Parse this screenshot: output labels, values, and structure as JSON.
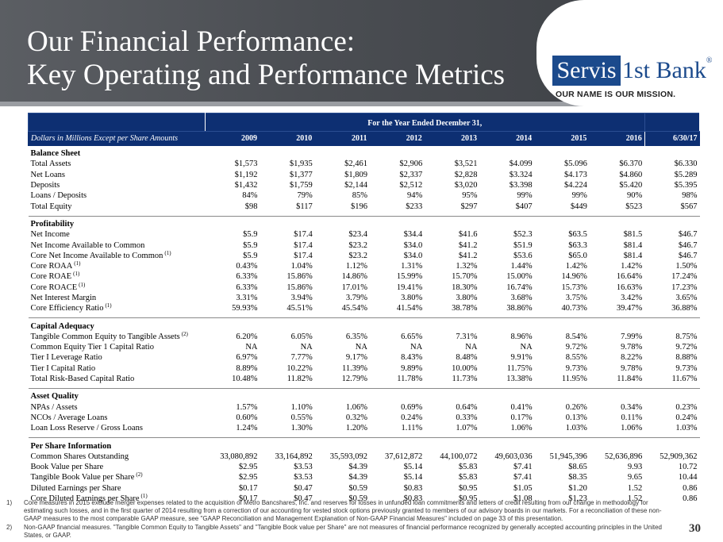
{
  "title": {
    "line1": "Our Financial Performance:",
    "line2": "Key Operating and Performance Metrics"
  },
  "logo": {
    "word1": "Servis",
    "word2": "1st Bank",
    "reg": "®",
    "tagline": "OUR NAME IS OUR MISSION."
  },
  "table": {
    "band_label": "For the Year Ended December 31,",
    "header_label": "Dollars in Millions Except per Share Amounts",
    "columns": [
      "2009",
      "2010",
      "2011",
      "2012",
      "2013",
      "2014",
      "2015",
      "2016",
      "6/30/17"
    ],
    "sections": [
      {
        "name": "Balance Sheet",
        "rows": [
          {
            "label": "Total Assets",
            "note": "",
            "values": [
              "$1,573",
              "$1,935",
              "$2,461",
              "$2,906",
              "$3,521",
              "$4.099",
              "$5.096",
              "$6.370",
              "$6.330"
            ]
          },
          {
            "label": "Net Loans",
            "note": "",
            "values": [
              "$1,192",
              "$1,377",
              "$1,809",
              "$2,337",
              "$2,828",
              "$3.324",
              "$4.173",
              "$4.860",
              "$5.289"
            ]
          },
          {
            "label": "Deposits",
            "note": "",
            "values": [
              "$1,432",
              "$1,759",
              "$2,144",
              "$2,512",
              "$3,020",
              "$3.398",
              "$4.224",
              "$5.420",
              "$5.395"
            ]
          },
          {
            "label": "Loans / Deposits",
            "note": "",
            "values": [
              "84%",
              "79%",
              "85%",
              "94%",
              "95%",
              "99%",
              "99%",
              "90%",
              "98%"
            ]
          },
          {
            "label": "Total Equity",
            "note": "",
            "values": [
              "$98",
              "$117",
              "$196",
              "$233",
              "$297",
              "$407",
              "$449",
              "$523",
              "$567"
            ]
          }
        ]
      },
      {
        "name": "Profitability",
        "rows": [
          {
            "label": "Net Income",
            "note": "",
            "values": [
              "$5.9",
              "$17.4",
              "$23.4",
              "$34.4",
              "$41.6",
              "$52.3",
              "$63.5",
              "$81.5",
              "$46.7"
            ]
          },
          {
            "label": "Net Income Available to Common",
            "note": "",
            "values": [
              "$5.9",
              "$17.4",
              "$23.2",
              "$34.0",
              "$41.2",
              "$51.9",
              "$63.3",
              "$81.4",
              "$46.7"
            ]
          },
          {
            "label": "Core Net Income Available to Common",
            "note": "(1)",
            "values": [
              "$5.9",
              "$17.4",
              "$23.2",
              "$34.0",
              "$41.2",
              "$53.6",
              "$65.0",
              "$81.4",
              "$46.7"
            ]
          },
          {
            "label": "Core ROAA",
            "note": "(1)",
            "values": [
              "0.43%",
              "1.04%",
              "1.12%",
              "1.31%",
              "1.32%",
              "1.44%",
              "1.42%",
              "1.42%",
              "1.50%"
            ]
          },
          {
            "label": "Core ROAE",
            "note": "(1)",
            "values": [
              "6.33%",
              "15.86%",
              "14.86%",
              "15.99%",
              "15.70%",
              "15.00%",
              "14.96%",
              "16.64%",
              "17.24%"
            ]
          },
          {
            "label": "Core ROACE",
            "note": "(1)",
            "values": [
              "6.33%",
              "15.86%",
              "17.01%",
              "19.41%",
              "18.30%",
              "16.74%",
              "15.73%",
              "16.63%",
              "17.23%"
            ]
          },
          {
            "label": "Net Interest Margin",
            "note": "",
            "values": [
              "3.31%",
              "3.94%",
              "3.79%",
              "3.80%",
              "3.80%",
              "3.68%",
              "3.75%",
              "3.42%",
              "3.65%"
            ]
          },
          {
            "label": "Core Efficiency Ratio",
            "note": "(1)",
            "values": [
              "59.93%",
              "45.51%",
              "45.54%",
              "41.54%",
              "38.78%",
              "38.86%",
              "40.73%",
              "39.47%",
              "36.88%"
            ]
          }
        ]
      },
      {
        "name": "Capital Adequacy",
        "rows": [
          {
            "label": "Tangible Common Equity to Tangible Assets",
            "note": "(2)",
            "values": [
              "6.20%",
              "6.05%",
              "6.35%",
              "6.65%",
              "7.31%",
              "8.96%",
              "8.54%",
              "7.99%",
              "8.75%"
            ]
          },
          {
            "label": "Common Equity Tier 1 Capital Ratio",
            "note": "",
            "values": [
              "NA",
              "NA",
              "NA",
              "NA",
              "NA",
              "NA",
              "9.72%",
              "9.78%",
              "9.72%"
            ]
          },
          {
            "label": "Tier I Leverage Ratio",
            "note": "",
            "values": [
              "6.97%",
              "7.77%",
              "9.17%",
              "8.43%",
              "8.48%",
              "9.91%",
              "8.55%",
              "8.22%",
              "8.88%"
            ]
          },
          {
            "label": "Tier I Capital Ratio",
            "note": "",
            "values": [
              "8.89%",
              "10.22%",
              "11.39%",
              "9.89%",
              "10.00%",
              "11.75%",
              "9.73%",
              "9.78%",
              "9.73%"
            ]
          },
          {
            "label": "Total Risk-Based Capital Ratio",
            "note": "",
            "values": [
              "10.48%",
              "11.82%",
              "12.79%",
              "11.78%",
              "11.73%",
              "13.38%",
              "11.95%",
              "11.84%",
              "11.67%"
            ]
          }
        ]
      },
      {
        "name": "Asset Quality",
        "rows": [
          {
            "label": "NPAs / Assets",
            "note": "",
            "values": [
              "1.57%",
              "1.10%",
              "1.06%",
              "0.69%",
              "0.64%",
              "0.41%",
              "0.26%",
              "0.34%",
              "0.23%"
            ]
          },
          {
            "label": "NCOs / Average Loans",
            "note": "",
            "values": [
              "0.60%",
              "0.55%",
              "0.32%",
              "0.24%",
              "0.33%",
              "0.17%",
              "0.13%",
              "0.11%",
              "0.24%"
            ]
          },
          {
            "label": "Loan Loss Reserve / Gross Loans",
            "note": "",
            "values": [
              "1.24%",
              "1.30%",
              "1.20%",
              "1.11%",
              "1.07%",
              "1.06%",
              "1.03%",
              "1.06%",
              "1.03%"
            ]
          }
        ]
      },
      {
        "name": "Per Share Information",
        "rows": [
          {
            "label": "Common Shares Outstanding",
            "note": "",
            "values": [
              "33,080,892",
              "33,164,892",
              "35,593,092",
              "37,612,872",
              "44,100,072",
              "49,603,036",
              "51,945,396",
              "52,636,896",
              "52,909,362"
            ]
          },
          {
            "label": "Book Value per Share",
            "note": "",
            "values": [
              "$2.95",
              "$3.53",
              "$4.39",
              "$5.14",
              "$5.83",
              "$7.41",
              "$8.65",
              "9.93",
              "10.72"
            ]
          },
          {
            "label": "Tangible Book Value per Share",
            "note": "(2)",
            "values": [
              "$2.95",
              "$3.53",
              "$4.39",
              "$5.14",
              "$5.83",
              "$7.41",
              "$8.35",
              "9.65",
              "10.44"
            ]
          },
          {
            "label": "Diluted Earnings per Share",
            "note": "",
            "values": [
              "$0.17",
              "$0.47",
              "$0.59",
              "$0.83",
              "$0.95",
              "$1.05",
              "$1.20",
              "1.52",
              "0.86"
            ]
          },
          {
            "label": "Core Diluted Earnings per Share",
            "note": "(1)",
            "values": [
              "$0.17",
              "$0.47",
              "$0.59",
              "$0.83",
              "$0.95",
              "$1.08",
              "$1.23",
              "1.52",
              "0.86"
            ]
          }
        ]
      }
    ]
  },
  "footnotes": [
    {
      "num": "1)",
      "text": "Core measures in 2015 exclude merger expenses related to the acquisition of Metro Bancshares, Inc. and reserves for losses in unfunded loan commitments and letters of credit resulting from our change in methodology for estimating such losses, and in the first quarter of 2014 resulting from a correction of our accounting for vested stock options previously granted to members of our advisory boards in our markets. For a reconciliation of these non-GAAP measures to the most comparable GAAP measure, see \"GAAP Reconciliation and Management Explanation of Non-GAAP Financial Measures\" included on page 33 of this presentation."
    },
    {
      "num": "2)",
      "text": "Non-GAAP financial measures. \"Tangible Common Equity to Tangible Assets\" and \"Tangible Book value per Share\" are not measures of financial performance recognized by generally accepted accounting principles in the United States, or GAAP."
    }
  ],
  "page_number": "30"
}
